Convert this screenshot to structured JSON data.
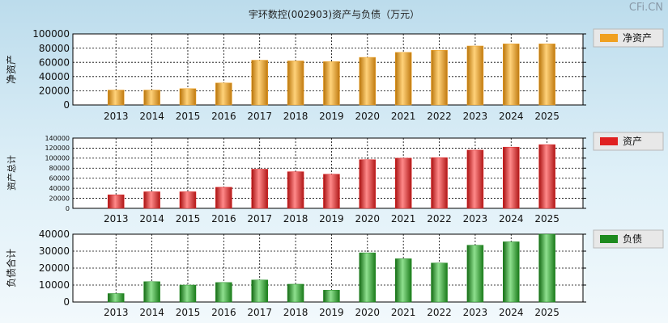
{
  "title": "宇环数控(002903)资产与负债（万元）",
  "watermark": "CFi.CN",
  "colors": {
    "net_assets": "#f0a020",
    "assets": "#e02020",
    "liabilities": "#1e8a1e"
  },
  "chart_data": [
    {
      "type": "bar",
      "title": "",
      "ylabel": "净资产",
      "legend": "净资产",
      "categories": [
        "2013",
        "2014",
        "2015",
        "2016",
        "2017",
        "2018",
        "2019",
        "2020",
        "2021",
        "2022",
        "2023",
        "2024",
        "2025"
      ],
      "values": [
        21000,
        21000,
        23000,
        31000,
        63000,
        62000,
        61000,
        67000,
        74000,
        77000,
        83000,
        86000,
        86000
      ],
      "ylim": [
        0,
        100000
      ],
      "yticks": [
        "0",
        "20000",
        "40000",
        "60000",
        "80000",
        "100000"
      ],
      "grid": true,
      "legend_position": "right"
    },
    {
      "type": "bar",
      "title": "",
      "ylabel": "资产总计",
      "legend": "资产",
      "categories": [
        "2013",
        "2014",
        "2015",
        "2016",
        "2017",
        "2018",
        "2019",
        "2020",
        "2021",
        "2022",
        "2023",
        "2024",
        "2025"
      ],
      "values": [
        27000,
        33000,
        33000,
        42000,
        78000,
        73000,
        68000,
        97000,
        100000,
        101000,
        116000,
        122000,
        127000
      ],
      "ylim": [
        0,
        140000
      ],
      "yticks": [
        "0",
        "20000",
        "40000",
        "60000",
        "80000",
        "100000",
        "120000",
        "140000"
      ],
      "grid": true,
      "legend_position": "right"
    },
    {
      "type": "bar",
      "title": "",
      "ylabel": "负债合计",
      "legend": "负债",
      "categories": [
        "2013",
        "2014",
        "2015",
        "2016",
        "2017",
        "2018",
        "2019",
        "2020",
        "2021",
        "2022",
        "2023",
        "2024",
        "2025"
      ],
      "values": [
        5000,
        12000,
        10000,
        11500,
        13000,
        10500,
        7000,
        29000,
        25500,
        23000,
        33500,
        35500,
        40000
      ],
      "ylim": [
        0,
        40000
      ],
      "yticks": [
        "0",
        "10000",
        "20000",
        "30000",
        "40000"
      ],
      "grid": true,
      "legend_position": "right"
    }
  ]
}
